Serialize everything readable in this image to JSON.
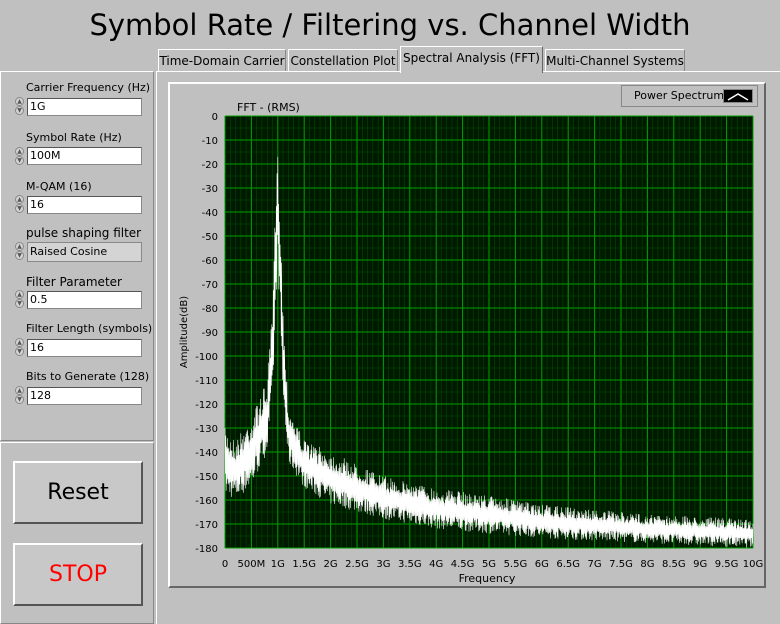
{
  "window_title": "Symbol Rate / Filtering vs. Channel Width",
  "tabs": [
    {
      "label": "Time-Domain Carrier",
      "active": false
    },
    {
      "label": "Constellation Plot",
      "active": false
    },
    {
      "label": "Spectral Analysis (FFT)",
      "active": true
    },
    {
      "label": "Multi-Channel Systems",
      "active": false
    }
  ],
  "controls": {
    "carrier_frequency": {
      "label": "Carrier Frequency (Hz)",
      "value": "1G"
    },
    "symbol_rate": {
      "label": "Symbol Rate (Hz)",
      "value": "100M"
    },
    "m_qam": {
      "label": "M-QAM (16)",
      "value": "16"
    },
    "pulse_shaping": {
      "label": "pulse shaping filter",
      "value": "Raised Cosine"
    },
    "filter_parameter": {
      "label": "Filter Parameter",
      "value": "0.5"
    },
    "filter_length": {
      "label": "Filter Length (symbols)",
      "value": "16"
    },
    "bits_to_generate": {
      "label": "Bits to Generate (128)",
      "value": "128"
    }
  },
  "buttons": {
    "reset_label": "Reset",
    "stop_label": "STOP"
  },
  "colors": {
    "stop_text": "#ff0000",
    "plot_background": "#001a00",
    "grid": "#00a000",
    "trace": "#ffffff"
  },
  "chart_data": {
    "type": "line",
    "plot_name": "FFT - (RMS)",
    "legend": [
      "Power Spectrum"
    ],
    "xlabel": "Frequency",
    "ylabel": "Amplitude(dB)",
    "xlim": [
      0,
      10000000000
    ],
    "ylim": [
      -180,
      0
    ],
    "x_tick_labels": [
      "0",
      "500M",
      "1G",
      "1.5G",
      "2G",
      "2.5G",
      "3G",
      "3.5G",
      "4G",
      "4.5G",
      "5G",
      "5.5G",
      "6G",
      "6.5G",
      "7G",
      "7.5G",
      "8G",
      "8.5G",
      "9G",
      "9.5G",
      "10G"
    ],
    "y_tick_labels": [
      "0",
      "-10",
      "-20",
      "-30",
      "-40",
      "-50",
      "-60",
      "-70",
      "-80",
      "-90",
      "-100",
      "-110",
      "-120",
      "-130",
      "-140",
      "-150",
      "-160",
      "-170",
      "-180"
    ],
    "grid": true,
    "series": [
      {
        "name": "Power Spectrum",
        "x": [
          0,
          200000000,
          500000000,
          800000000,
          900000000,
          950000000,
          1000000000,
          1050000000,
          1100000000,
          1200000000,
          1500000000,
          2000000000,
          3000000000,
          4000000000,
          5000000000,
          6000000000,
          7000000000,
          8000000000,
          9000000000,
          10000000000
        ],
        "upper": [
          -130,
          -135,
          -125,
          -110,
          -80,
          -40,
          -15,
          -40,
          -80,
          -120,
          -135,
          -140,
          -150,
          -155,
          -158,
          -162,
          -164,
          -166,
          -167,
          -168
        ],
        "lower": [
          -158,
          -160,
          -155,
          -140,
          -120,
          -90,
          -60,
          -90,
          -120,
          -145,
          -155,
          -162,
          -168,
          -172,
          -174,
          -176,
          -177,
          -178,
          -179,
          -180
        ]
      }
    ]
  }
}
